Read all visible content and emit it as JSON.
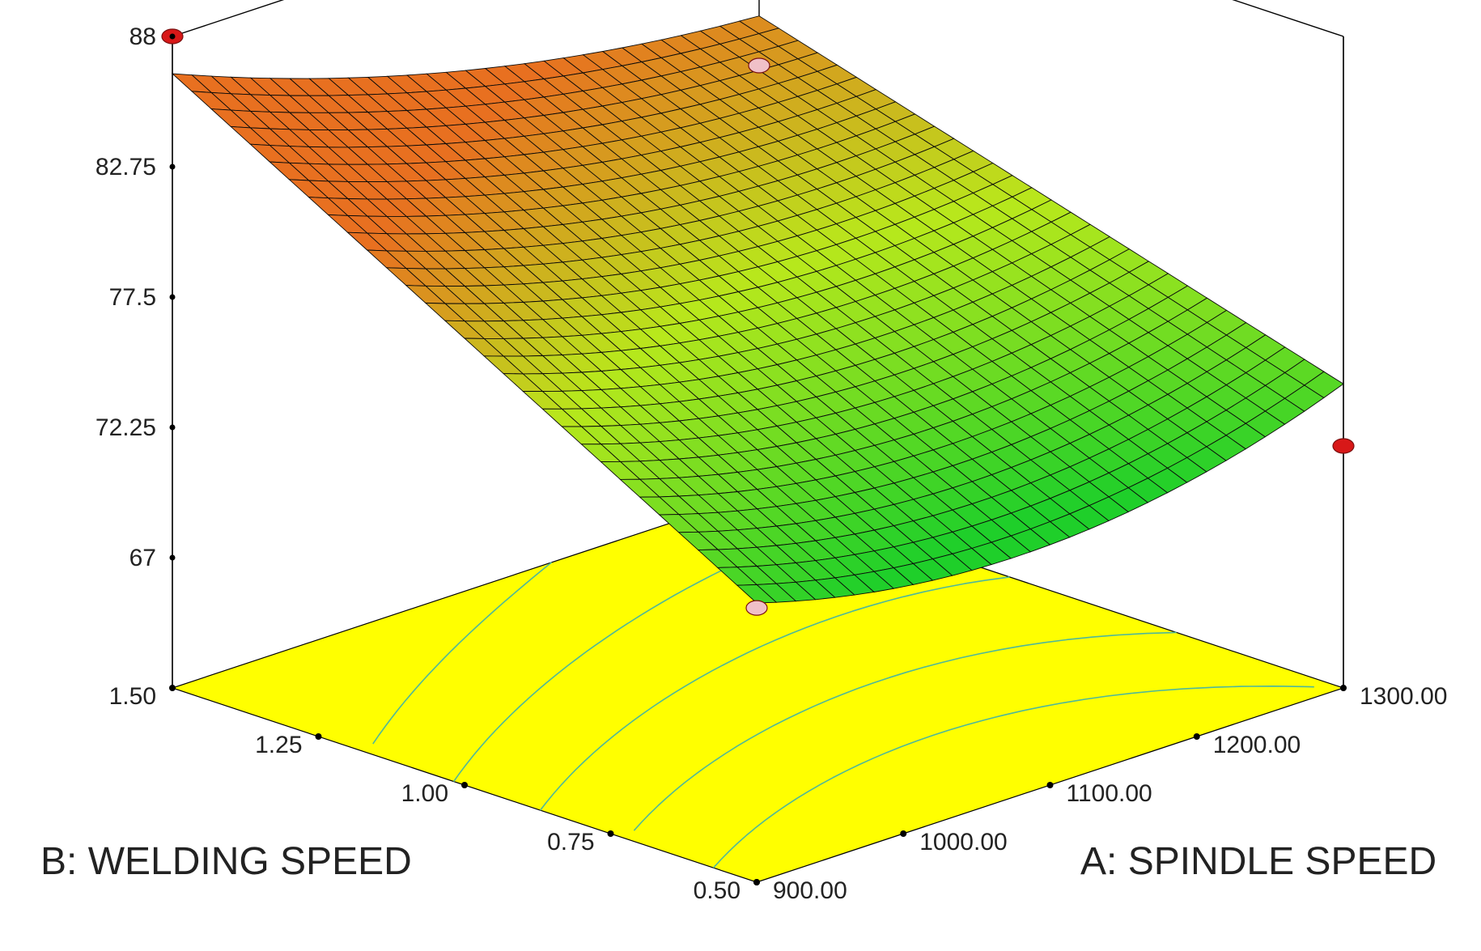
{
  "chart_data": {
    "type": "surface3d",
    "title": "",
    "colors": {
      "floor": "#ffff00",
      "contour": "#4fb89a",
      "surface_low": "#1fcf2a",
      "surface_mid": "#b8e81c",
      "surface_high": "#e87020",
      "design_point_high": "#d81818",
      "design_point_low": "#f0c0c8",
      "frame": "#000000"
    },
    "x_axis": {
      "label": "A: SPINDLE SPEED",
      "range": [
        900,
        1300
      ],
      "ticks": [
        "900.00",
        "1000.00",
        "1100.00",
        "1200.00",
        "1300.00"
      ],
      "tick_values": [
        900,
        1000,
        1100,
        1200,
        1300
      ]
    },
    "y_axis": {
      "label": "B: WELDING SPEED",
      "range": [
        0.5,
        1.5
      ],
      "ticks": [
        "0.50",
        "0.75",
        "1.00",
        "1.25",
        "1.50"
      ],
      "tick_values": [
        0.5,
        0.75,
        1.0,
        1.25,
        1.5
      ]
    },
    "z_axis": {
      "label": "",
      "range": [
        61.75,
        88
      ],
      "ticks": [
        "67",
        "72.25",
        "77.5",
        "82.75",
        "88"
      ],
      "tick_values": [
        67,
        72.25,
        77.5,
        82.75,
        88
      ]
    },
    "surface_corners": [
      {
        "x": 900,
        "y": 0.5,
        "z": 73.0
      },
      {
        "x": 1300,
        "y": 0.5,
        "z": 74.0
      },
      {
        "x": 900,
        "y": 1.5,
        "z": 86.5
      },
      {
        "x": 1300,
        "y": 1.5,
        "z": 81.0
      }
    ],
    "surface_minimum": {
      "x": 1150,
      "y": 0.6,
      "z": 72.5
    },
    "design_points": [
      {
        "x": 900,
        "y": 1.5,
        "z": 88.0,
        "position": "above"
      },
      {
        "x": 1300,
        "y": 1.5,
        "z": 79.0,
        "position": "above"
      },
      {
        "x": 900,
        "y": 0.5,
        "z": 72.8,
        "position": "above"
      },
      {
        "x": 1300,
        "y": 0.5,
        "z": 71.5,
        "position": "below"
      }
    ],
    "grid": false,
    "legend": "none"
  }
}
